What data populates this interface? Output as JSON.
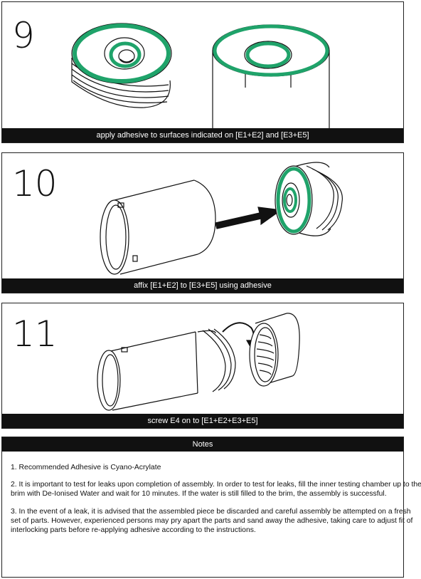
{
  "steps": [
    {
      "number": "9",
      "caption": "apply adhesive to surfaces indicated on [E1+E2] and [E3+E5]"
    },
    {
      "number": "10",
      "caption": "affix [E1+E2] to [E3+E5] using adhesive"
    },
    {
      "number": "11",
      "caption": "screw E4 on to [E1+E2+E3+E5]"
    }
  ],
  "notes": {
    "title": "Notes",
    "items": [
      "1. Recommended Adhesive is Cyano-Acrylate",
      "2. It is important to test for leaks upon completion of assembly. In order to test for leaks, fill the inner testing chamber up to the brim with De-Ionised Water and wait for 10 minutes. If the water is still filled to the brim, the assembly is successful.",
      "3. In the event of a leak, it is advised that the assembled piece be discarded and careful assembly be attempted on a fresh set of parts. However, experienced persons may pry apart the parts and sand away the adhesive, taking care to adjust fit of interlocking parts before re-applying adhesive according to the instructions."
    ]
  },
  "colors": {
    "adhesive": "#1fa36a",
    "ink": "#111111"
  }
}
